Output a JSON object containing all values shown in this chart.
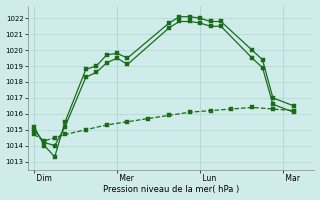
{
  "bg_color": "#d0ecea",
  "grid_color": "#b0d8d0",
  "line_color": "#1a6b1a",
  "xlabel": "Pression niveau de la mer( hPa )",
  "ylim": [
    1012.5,
    1022.8
  ],
  "yticks": [
    1013,
    1014,
    1015,
    1016,
    1017,
    1018,
    1019,
    1020,
    1021,
    1022
  ],
  "xtick_labels": [
    " Dim",
    " Mer",
    " Lun",
    " Mar"
  ],
  "xtick_positions": [
    0,
    4,
    8,
    12
  ],
  "xlim": [
    -0.3,
    13.5
  ],
  "line1_x": [
    0,
    0.5,
    1.0,
    1.5,
    2.5,
    3.0,
    3.5,
    4.0,
    4.5,
    6.5,
    7.0,
    7.5,
    8.0,
    8.5,
    9.0,
    10.5,
    11.0,
    11.5,
    12.5
  ],
  "line1_y": [
    1015.2,
    1014.0,
    1013.3,
    1015.5,
    1018.8,
    1019.0,
    1019.7,
    1019.8,
    1019.5,
    1021.7,
    1022.1,
    1022.1,
    1022.0,
    1021.8,
    1021.8,
    1020.0,
    1019.4,
    1017.0,
    1016.5
  ],
  "line2_x": [
    0,
    0.5,
    1.0,
    1.5,
    2.5,
    3.0,
    3.5,
    4.0,
    4.5,
    6.5,
    7.0,
    7.5,
    8.0,
    8.5,
    9.0,
    10.5,
    11.0,
    11.5,
    12.5
  ],
  "line2_y": [
    1015.0,
    1014.2,
    1014.0,
    1015.2,
    1018.3,
    1018.6,
    1019.2,
    1019.5,
    1019.1,
    1021.4,
    1021.8,
    1021.8,
    1021.7,
    1021.5,
    1021.5,
    1019.5,
    1018.9,
    1016.6,
    1016.1
  ],
  "line3_x": [
    0,
    0.5,
    1.0,
    1.5,
    2.5,
    3.5,
    4.5,
    5.5,
    6.5,
    7.5,
    8.5,
    9.5,
    10.5,
    11.5,
    12.5
  ],
  "line3_y": [
    1014.7,
    1014.3,
    1014.5,
    1014.7,
    1015.0,
    1015.3,
    1015.5,
    1015.7,
    1015.9,
    1016.1,
    1016.2,
    1016.3,
    1016.4,
    1016.3,
    1016.2
  ]
}
